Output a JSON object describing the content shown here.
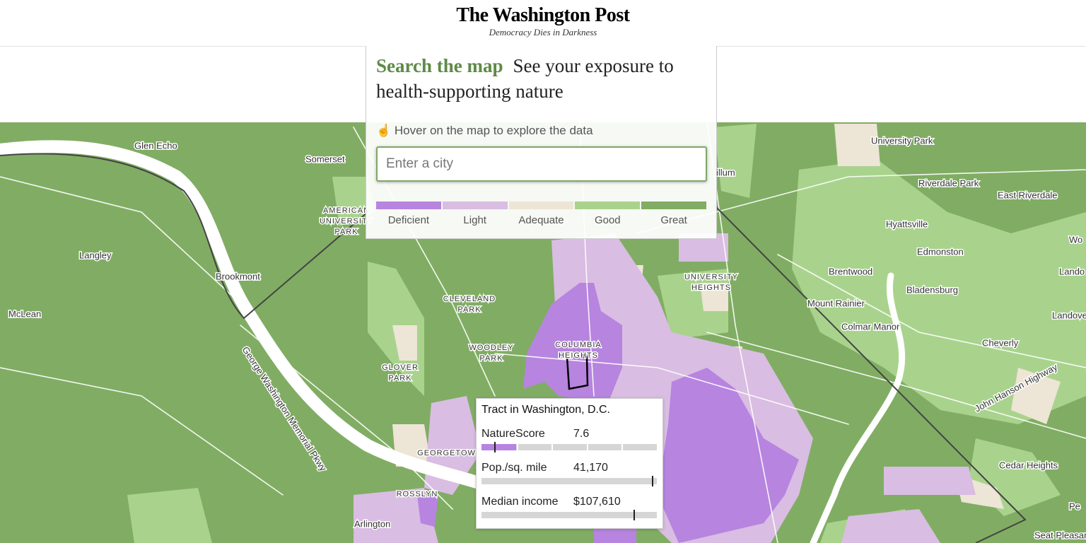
{
  "header": {
    "logo": "The Washington Post",
    "tagline": "Democracy Dies in Darkness"
  },
  "search_panel": {
    "title_highlight": "Search the map",
    "title_rest": "See your exposure to health-supporting nature",
    "hint": "Hover on the map to explore the data",
    "input_placeholder": "Enter a city",
    "legend": [
      {
        "label": "Deficient",
        "color": "#b784e0"
      },
      {
        "label": "Light",
        "color": "#d9bde2"
      },
      {
        "label": "Adequate",
        "color": "#ede5d5"
      },
      {
        "label": "Good",
        "color": "#a9d38d"
      },
      {
        "label": "Great",
        "color": "#80ad63"
      }
    ]
  },
  "map": {
    "labels": [
      {
        "lines": [
          "Glen Echo"
        ]
      },
      {
        "lines": [
          "Somerset"
        ]
      },
      {
        "lines": [
          "AMERICAN",
          "UNIVERSITY",
          "PARK"
        ]
      },
      {
        "lines": [
          "Langley"
        ]
      },
      {
        "lines": [
          "Brookmont"
        ]
      },
      {
        "lines": [
          "McLean"
        ]
      },
      {
        "lines": [
          "CLEVELAND",
          "PARK"
        ]
      },
      {
        "lines": [
          "WOODLEY",
          "PARK"
        ]
      },
      {
        "lines": [
          "GLOVER",
          "PARK"
        ]
      },
      {
        "lines": [
          "COLUMBIA",
          "HEIGHTS"
        ]
      },
      {
        "lines": [
          "UNIVERSITY",
          "HEIGHTS"
        ]
      },
      {
        "lines": [
          "University Park"
        ]
      },
      {
        "lines": [
          "Riverdale Park"
        ]
      },
      {
        "lines": [
          "East Riverdale"
        ]
      },
      {
        "lines": [
          "Hyattsville"
        ]
      },
      {
        "lines": [
          "Edmonston"
        ]
      },
      {
        "lines": [
          "Brentwood"
        ]
      },
      {
        "lines": [
          "Bladensburg"
        ]
      },
      {
        "lines": [
          "Mount Rainier"
        ]
      },
      {
        "lines": [
          "Colmar Manor"
        ]
      },
      {
        "lines": [
          "Cheverly"
        ]
      },
      {
        "lines": [
          "Cedar Heights"
        ]
      },
      {
        "lines": [
          "Seat Pleasant"
        ]
      },
      {
        "lines": [
          "Arlington"
        ]
      },
      {
        "lines": [
          "ROSSLYN"
        ]
      },
      {
        "lines": [
          "GEORGETOWN"
        ]
      },
      {
        "lines": [
          "George Washington Memorial Pkwy"
        ]
      },
      {
        "lines": [
          "John Hanson Highway"
        ]
      },
      {
        "lines": [
          "illum"
        ]
      },
      {
        "lines": [
          "Wo"
        ]
      },
      {
        "lines": [
          "Lando"
        ]
      },
      {
        "lines": [
          "Landove"
        ]
      },
      {
        "lines": [
          "Pe"
        ]
      }
    ]
  },
  "tooltip": {
    "title": "Tract in Washington, D.C.",
    "rows": [
      {
        "label": "NatureScore",
        "value": "7.6"
      },
      {
        "label": "Pop./sq. mile",
        "value": "41,170"
      },
      {
        "label": "Median income",
        "value": "$107,610"
      }
    ]
  }
}
